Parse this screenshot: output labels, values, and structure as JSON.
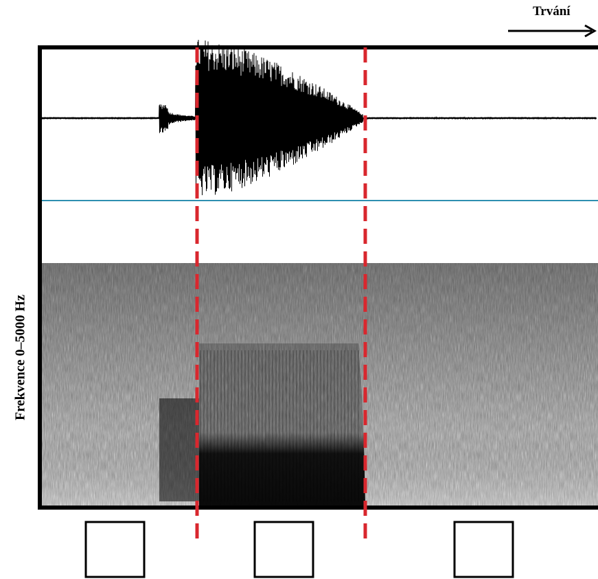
{
  "duration_label": "Trvání",
  "frequency_label": "Frekvence 0–5000 Hz",
  "segment_boxes": [
    "",
    "",
    ""
  ],
  "colors": {
    "boundary": "#d9272e",
    "baseline": "#2e8fb0",
    "frame": "#000000"
  }
}
